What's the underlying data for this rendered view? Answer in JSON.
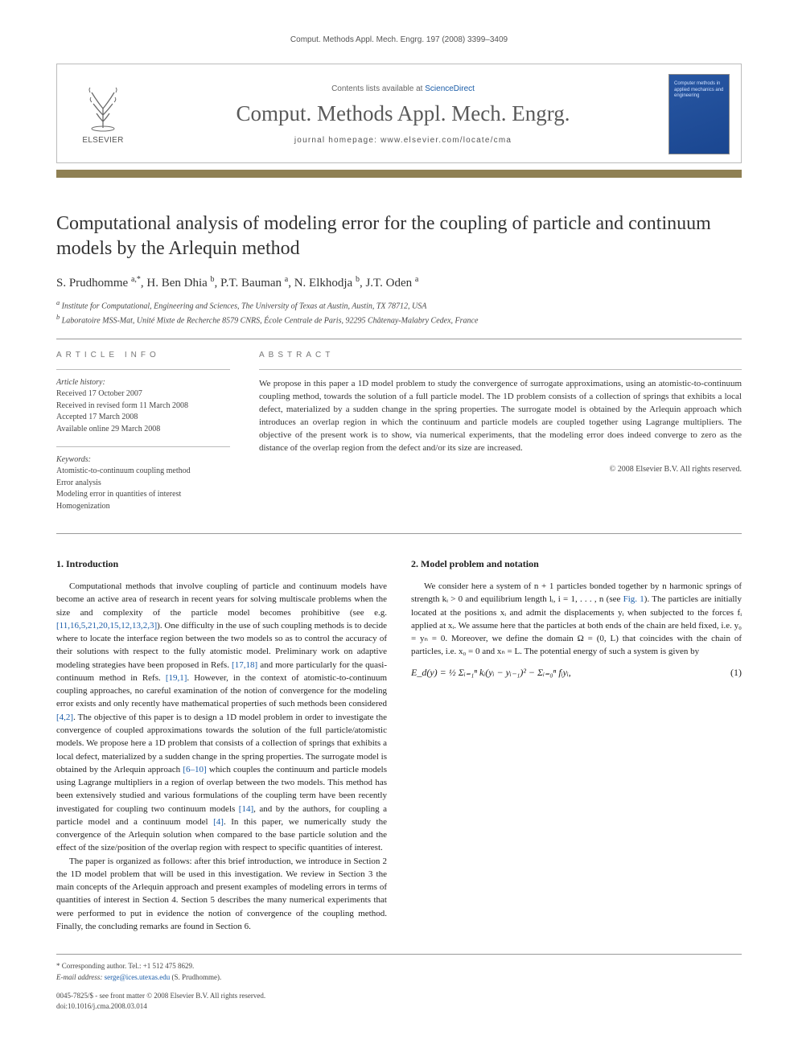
{
  "running_head": "Comput. Methods Appl. Mech. Engrg. 197 (2008) 3399–3409",
  "masthead": {
    "publisher_label": "ELSEVIER",
    "contents_prefix": "Contents lists available at ",
    "contents_link": "ScienceDirect",
    "journal_title": "Comput. Methods Appl. Mech. Engrg.",
    "homepage_label": "journal homepage: www.elsevier.com/locate/cma",
    "cover_text": "Computer methods in applied mechanics and engineering",
    "accent_color": "#8f8053",
    "cover_bg_start": "#2857a3",
    "cover_bg_end": "#1a4690"
  },
  "paper": {
    "title": "Computational analysis of modeling error for the coupling of particle and continuum models by the Arlequin method",
    "authors_html": "S. Prudhomme <sup>a,*</sup>, H. Ben Dhia <sup>b</sup>, P.T. Bauman <sup>a</sup>, N. Elkhodja <sup>b</sup>, J.T. Oden <sup>a</sup>",
    "affiliations": {
      "a": "Institute for Computational, Engineering and Sciences, The University of Texas at Austin, Austin, TX 78712, USA",
      "b": "Laboratoire MSS-Mat, Unité Mixte de Recherche 8579 CNRS, École Centrale de Paris, 92295 Châtenay-Malabry Cedex, France"
    }
  },
  "article_info": {
    "label": "ARTICLE INFO",
    "history_label": "Article history:",
    "history": [
      "Received 17 October 2007",
      "Received in revised form 11 March 2008",
      "Accepted 17 March 2008",
      "Available online 29 March 2008"
    ],
    "keywords_label": "Keywords:",
    "keywords": [
      "Atomistic-to-continuum coupling method",
      "Error analysis",
      "Modeling error in quantities of interest",
      "Homogenization"
    ]
  },
  "abstract": {
    "label": "ABSTRACT",
    "text": "We propose in this paper a 1D model problem to study the convergence of surrogate approximations, using an atomistic-to-continuum coupling method, towards the solution of a full particle model. The 1D problem consists of a collection of springs that exhibits a local defect, materialized by a sudden change in the spring properties. The surrogate model is obtained by the Arlequin approach which introduces an overlap region in which the continuum and particle models are coupled together using Lagrange multipliers. The objective of the present work is to show, via numerical experiments, that the modeling error does indeed converge to zero as the distance of the overlap region from the defect and/or its size are increased.",
    "copyright": "© 2008 Elsevier B.V. All rights reserved."
  },
  "sections": {
    "s1": {
      "heading": "1. Introduction",
      "p1": "Computational methods that involve coupling of particle and continuum models have become an active area of research in recent years for solving multiscale problems when the size and complexity of the particle model becomes prohibitive (see e.g. [11,16,5,21,20,15,12,13,2,3]). One difficulty in the use of such coupling methods is to decide where to locate the interface region between the two models so as to control the accuracy of their solutions with respect to the fully atomistic model. Preliminary work on adaptive modeling strategies have been proposed in Refs. [17,18] and more particularly for the quasi-continuum method in Refs. [19,1]. However, in the context of atomistic-to-continuum coupling approaches, no careful examination of the notion of convergence for the modeling error exists and only recently have mathematical properties of such methods been considered [4,2]. The objective of this paper is to design a 1D model problem in order to investigate the convergence of coupled approximations towards the solution of the full particle/atomistic models. We propose here a 1D problem that consists of a collection of springs that exhibits a local defect, materialized by a sudden change in the spring properties. The surrogate model is obtained by the Arlequin approach [6–10] which couples the continuum and particle models using Lagrange multipliers in a region of overlap between the two models. This method has been extensively studied and various formulations of the coupling term have been recently investigated for coupling two continuum models [14], and by the authors, for coupling a particle model and a continuum model [4]. In this paper, we numerically study the convergence of the Arlequin solution when compared to the base particle solution and the effect of the size/position of the overlap region with respect to specific quantities of interest.",
      "p2": "The paper is organized as follows: after this brief introduction, we introduce in Section 2 the 1D model problem that will be used in this investigation. We review in Section 3 the main concepts of the Arlequin approach and present examples of modeling errors in terms of quantities of interest in Section 4. Section 5 describes the many numerical experiments that were performed to put in evidence the notion of convergence of the coupling method. Finally, the concluding remarks are found in Section 6."
    },
    "s2": {
      "heading": "2. Model problem and notation",
      "p1_a": "We consider here a system of n + 1 particles bonded together by n harmonic springs of strength kᵢ > 0 and equilibrium length lᵢ, i = 1, . . . , n (see ",
      "p1_fig": "Fig. 1",
      "p1_b": "). The particles are initially located at the positions xᵢ and admit the displacements yᵢ when subjected to the forces fᵢ applied at xᵢ. We assume here that the particles at both ends of the chain are held fixed, i.e. y₀ = yₙ = 0. Moreover, we define the domain Ω = (0, L) that coincides with the chain of particles, i.e. x₀ = 0 and xₙ = L. The potential energy of such a system is given by",
      "eq1": "E_d(y) = ½ Σᵢ₌₁ⁿ kᵢ(yᵢ − yᵢ₋₁)² − Σᵢ₌₀ⁿ fᵢyᵢ,",
      "eq1_num": "(1)"
    }
  },
  "footnote": {
    "corr": "* Corresponding author. Tel.: +1 512 475 8629.",
    "email_label": "E-mail address:",
    "email": "serge@ices.utexas.edu",
    "email_who": "(S. Prudhomme)."
  },
  "doi": {
    "line1": "0045-7825/$ - see front matter © 2008 Elsevier B.V. All rights reserved.",
    "line2": "doi:10.1016/j.cma.2008.03.014"
  }
}
